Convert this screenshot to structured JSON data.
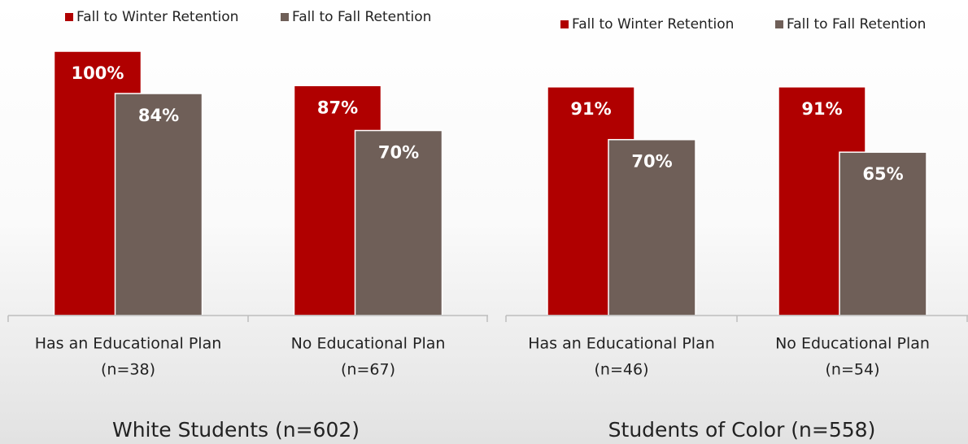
{
  "chart_data": [
    {
      "type": "bar",
      "title": "White Students (n=602)",
      "categories": [
        [
          "Has an Educational Plan",
          "(n=38)"
        ],
        [
          "No Educational Plan",
          "(n=67)"
        ]
      ],
      "series": [
        {
          "name": "Fall to Winter Retention",
          "color": "#b00000",
          "values": [
            100,
            87
          ],
          "value_labels": [
            "100%",
            "87%"
          ]
        },
        {
          "name": "Fall to Fall Retention",
          "color": "#6f5f58",
          "values": [
            84,
            70
          ],
          "value_labels": [
            "84%",
            "70%"
          ]
        }
      ],
      "ylim": [
        0,
        100
      ]
    },
    {
      "type": "bar",
      "title": "Students of Color (n=558)",
      "categories": [
        [
          "Has an Educational Plan",
          "(n=46)"
        ],
        [
          "No Educational Plan",
          "(n=54)"
        ]
      ],
      "series": [
        {
          "name": "Fall to Winter Retention",
          "color": "#b00000",
          "values": [
            91,
            91
          ],
          "value_labels": [
            "91%",
            "91%"
          ]
        },
        {
          "name": "Fall to Fall Retention",
          "color": "#6f5f58",
          "values": [
            70,
            65
          ],
          "value_labels": [
            "70%",
            "65%"
          ]
        }
      ],
      "ylim": [
        0,
        100
      ]
    }
  ]
}
